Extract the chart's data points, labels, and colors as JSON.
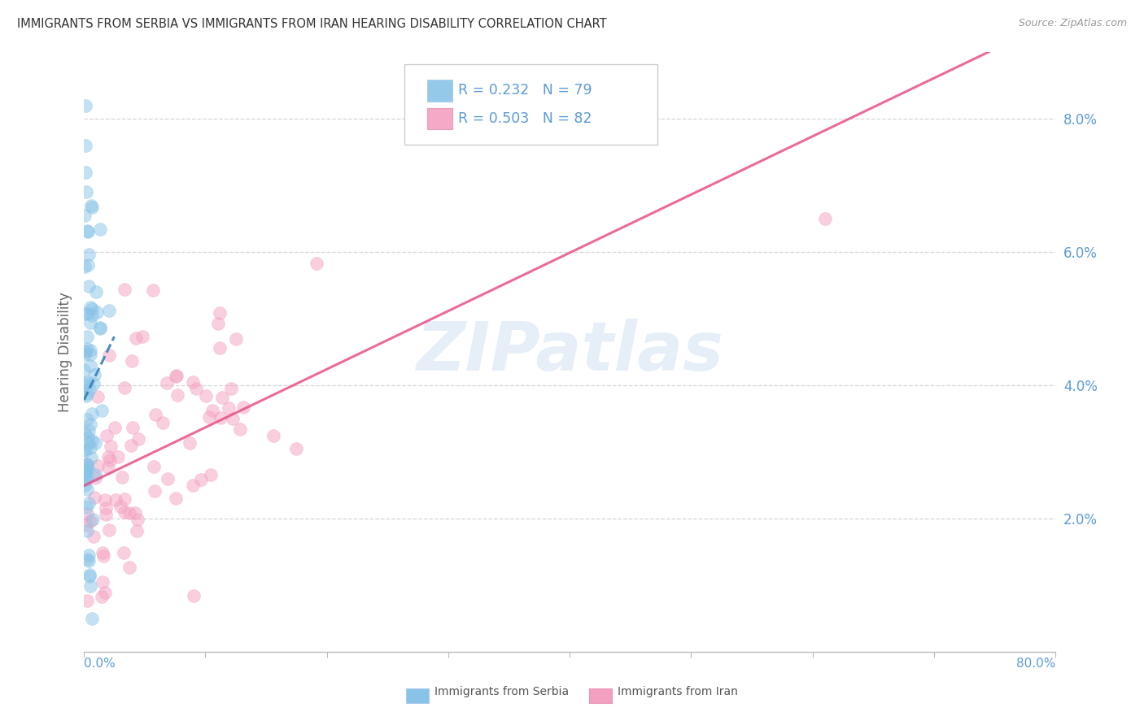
{
  "title": "IMMIGRANTS FROM SERBIA VS IMMIGRANTS FROM IRAN HEARING DISABILITY CORRELATION CHART",
  "source": "Source: ZipAtlas.com",
  "ylabel": "Hearing Disability",
  "yticks": [
    "2.0%",
    "4.0%",
    "6.0%",
    "8.0%"
  ],
  "ytick_vals": [
    0.02,
    0.04,
    0.06,
    0.08
  ],
  "xlim": [
    0.0,
    0.8
  ],
  "ylim": [
    0.0,
    0.09
  ],
  "color_serbia": "#89c4e8",
  "color_iran": "#f4a0c0",
  "color_serbia_line": "#2c7bb6",
  "color_iran_line": "#e8508a",
  "serbia_R": 0.232,
  "serbia_N": 79,
  "iran_R": 0.503,
  "iran_N": 82,
  "watermark": "ZIPatlas",
  "background_color": "#ffffff",
  "axis_color": "#5b9bd5",
  "grid_color": "#cccccc"
}
